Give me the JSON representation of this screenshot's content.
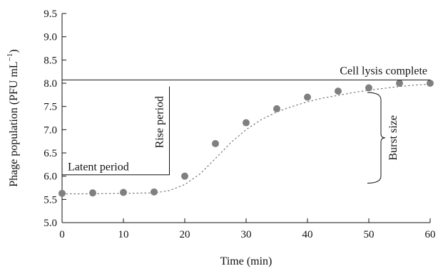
{
  "chart_data": {
    "type": "scatter",
    "title": "",
    "xlabel": "Time (min)",
    "ylabel_main": "Phage population (PFU mL",
    "ylabel_sup": "−1",
    "ylabel_close": ")",
    "xlim": [
      0,
      60
    ],
    "ylim": [
      5.0,
      9.5
    ],
    "xticks": [
      0,
      10,
      20,
      30,
      40,
      50,
      60
    ],
    "yticks": [
      5.0,
      5.5,
      6.0,
      6.5,
      7.0,
      7.5,
      8.0,
      8.5,
      9.0,
      9.5
    ],
    "grid": false,
    "points": [
      {
        "x": 0,
        "y": 5.63
      },
      {
        "x": 5,
        "y": 5.64
      },
      {
        "x": 10,
        "y": 5.65
      },
      {
        "x": 15,
        "y": 5.66
      },
      {
        "x": 20,
        "y": 6.0
      },
      {
        "x": 25,
        "y": 6.7
      },
      {
        "x": 30,
        "y": 7.15
      },
      {
        "x": 35,
        "y": 7.45
      },
      {
        "x": 40,
        "y": 7.7
      },
      {
        "x": 45,
        "y": 7.83
      },
      {
        "x": 50,
        "y": 7.9
      },
      {
        "x": 55,
        "y": 8.0
      },
      {
        "x": 60,
        "y": 8.0
      }
    ],
    "fit_curve": {
      "style": "dotted",
      "x": [
        0,
        5,
        10,
        15,
        17.5,
        20,
        22.5,
        25,
        27.5,
        30,
        32.5,
        35,
        37.5,
        40,
        42.5,
        45,
        47.5,
        50,
        52.5,
        55,
        57.5,
        60
      ],
      "y": [
        5.62,
        5.62,
        5.63,
        5.64,
        5.69,
        5.82,
        6.05,
        6.38,
        6.72,
        7.0,
        7.22,
        7.38,
        7.5,
        7.6,
        7.68,
        7.74,
        7.8,
        7.85,
        7.89,
        7.93,
        7.96,
        7.98
      ]
    },
    "annotations": {
      "cell_lysis": {
        "text": "Cell lysis complete",
        "level_y": 8.07
      },
      "latent": {
        "text": "Latent period",
        "level_y": 6.03,
        "x_end": 17.5
      },
      "rise": {
        "text": "Rise period",
        "x": 17.5,
        "y_top": 7.93,
        "y_bottom": 6.03
      },
      "burst": {
        "text": "Burst size",
        "x": 50,
        "y_top": 7.8,
        "y_bottom": 5.85
      }
    }
  }
}
